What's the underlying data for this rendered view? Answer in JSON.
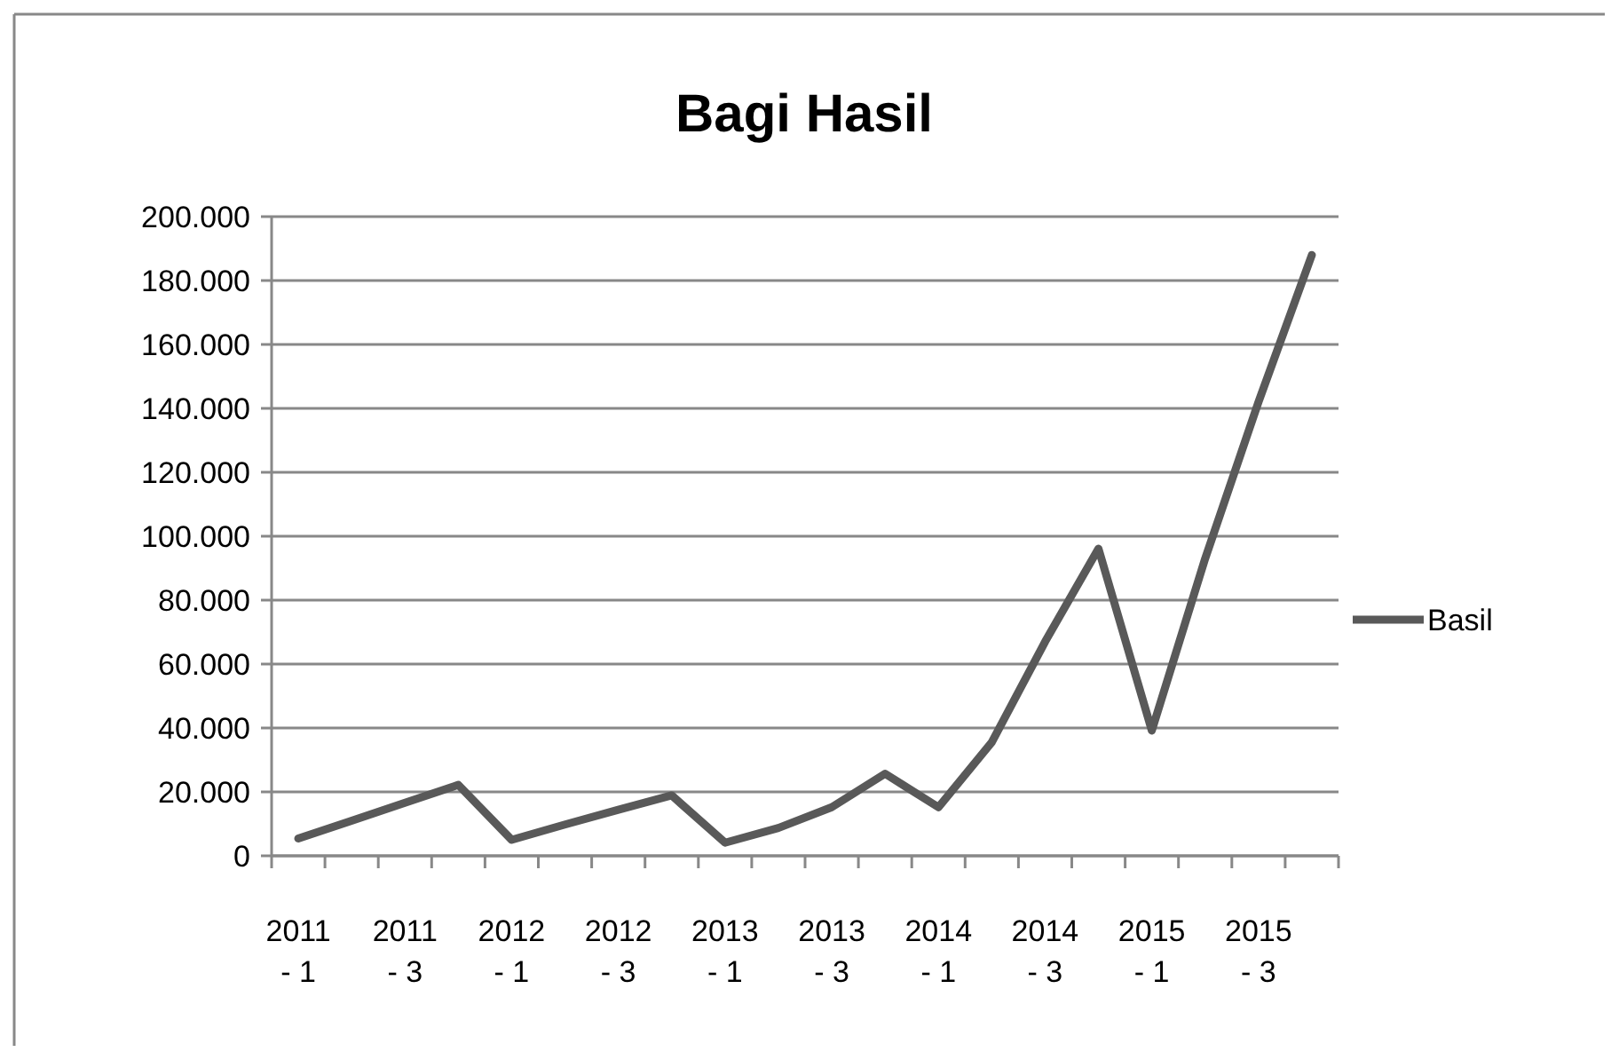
{
  "chart_data": {
    "type": "line",
    "title": "Bagi Hasil",
    "categories": [
      "2011 - 1",
      null,
      "2011 - 3",
      null,
      "2012 - 1",
      null,
      "2012 - 3",
      null,
      "2013 - 1",
      null,
      "2013 - 3",
      null,
      "2014 - 1",
      null,
      "2014 - 3",
      null,
      "2015 - 1",
      null,
      "2015 - 3",
      null
    ],
    "series": [
      {
        "name": "Basil",
        "color": "#595959",
        "values": [
          5400,
          11000,
          16600,
          22200,
          5000,
          9800,
          14400,
          18900,
          4100,
          8700,
          15200,
          25700,
          15200,
          35500,
          67000,
          96100,
          39200,
          93000,
          142000,
          188000
        ]
      }
    ],
    "ylim": [
      0,
      200000
    ],
    "yticks": [
      0,
      {
        "value": 20000,
        "label": "20.000"
      },
      {
        "value": 40000,
        "label": "40.000"
      },
      {
        "value": 60000,
        "label": "60.000"
      },
      {
        "value": 80000,
        "label": "80.000"
      },
      {
        "value": 100000,
        "label": "100.000"
      },
      {
        "value": 120000,
        "label": "120.000"
      },
      {
        "value": 140000,
        "label": "140.000"
      },
      {
        "value": 160000,
        "label": "160.000"
      },
      {
        "value": 180000,
        "label": "180.000"
      },
      {
        "value": 200000,
        "label": "200.000"
      }
    ],
    "grid": "y",
    "legend": "right",
    "marker": "none",
    "line_style": "solid"
  }
}
